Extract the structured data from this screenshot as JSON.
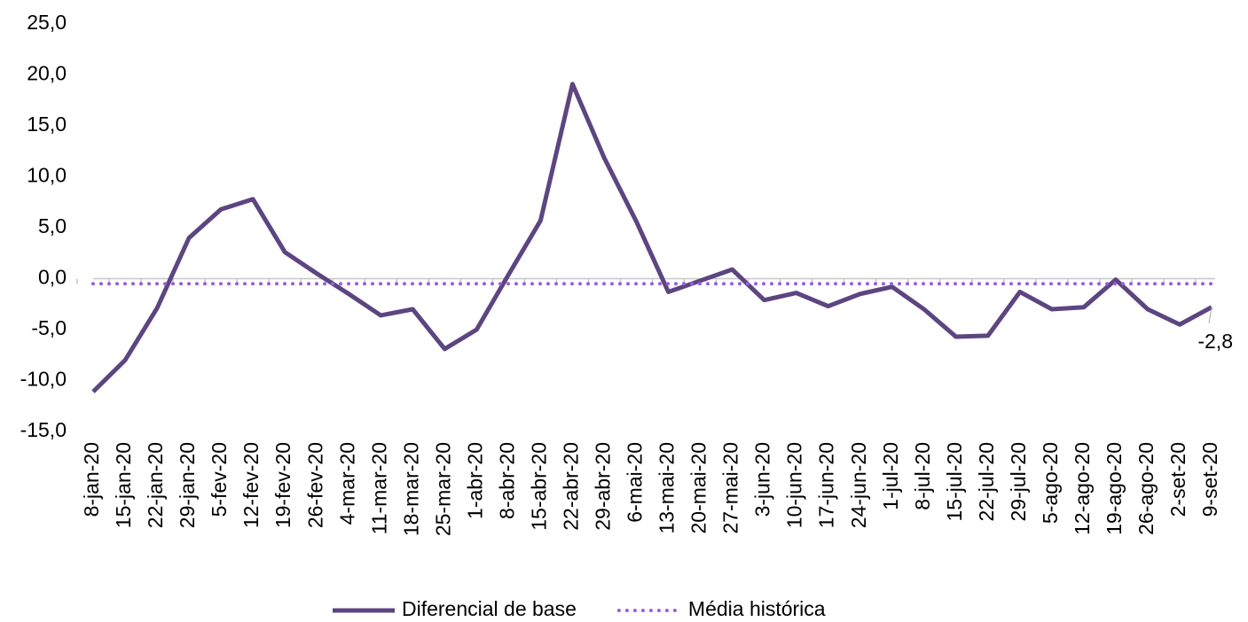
{
  "chart_data": {
    "type": "line",
    "categories": [
      "8-jan-20",
      "15-jan-20",
      "22-jan-20",
      "29-jan-20",
      "5-fev-20",
      "12-fev-20",
      "19-fev-20",
      "26-fev-20",
      "4-mar-20",
      "11-mar-20",
      "18-mar-20",
      "25-mar-20",
      "1-abr-20",
      "8-abr-20",
      "15-abr-20",
      "22-abr-20",
      "29-abr-20",
      "6-mai-20",
      "13-mai-20",
      "20-mai-20",
      "27-mai-20",
      "3-jun-20",
      "10-jun-20",
      "17-jun-20",
      "24-jun-20",
      "1-jul-20",
      "8-jul-20",
      "15-jul-20",
      "22-jul-20",
      "29-jul-20",
      "5-ago-20",
      "12-ago-20",
      "19-ago-20",
      "26-ago-20",
      "2-set-20",
      "9-set-20"
    ],
    "series": [
      {
        "name": "Diferencial de base",
        "color": "#5c4580",
        "style": "solid",
        "values": [
          -11.1,
          -8.0,
          -2.9,
          4.0,
          6.8,
          7.8,
          2.6,
          0.5,
          -1.5,
          -3.6,
          -3.0,
          -6.9,
          -5.0,
          0.4,
          5.7,
          19.1,
          11.8,
          5.6,
          -1.3,
          -0.2,
          0.9,
          -2.1,
          -1.4,
          -2.7,
          -1.5,
          -0.8,
          -3.0,
          -5.7,
          -5.6,
          -1.3,
          -3.0,
          -2.8,
          -0.1,
          -3.0,
          -4.5,
          -2.8
        ],
        "value_labels": [
          null,
          null,
          null,
          null,
          null,
          null,
          null,
          null,
          null,
          null,
          null,
          null,
          null,
          null,
          null,
          null,
          null,
          null,
          null,
          null,
          null,
          null,
          null,
          null,
          null,
          null,
          null,
          null,
          null,
          null,
          null,
          null,
          null,
          null,
          null,
          "-2,8"
        ]
      },
      {
        "name": "Média histórica",
        "color": "#9b5fd6",
        "style": "dotted",
        "values": [
          -0.5,
          -0.5,
          -0.5,
          -0.5,
          -0.5,
          -0.5,
          -0.5,
          -0.5,
          -0.5,
          -0.5,
          -0.5,
          -0.5,
          -0.5,
          -0.5,
          -0.5,
          -0.5,
          -0.5,
          -0.5,
          -0.5,
          -0.5,
          -0.5,
          -0.5,
          -0.5,
          -0.5,
          -0.5,
          -0.5,
          -0.5,
          -0.5,
          -0.5,
          -0.5,
          -0.5,
          -0.5,
          -0.5,
          -0.5,
          -0.5,
          -0.5
        ]
      }
    ],
    "ylim": [
      -15,
      25
    ],
    "yticks": [
      {
        "value": -15,
        "label": "-15,0"
      },
      {
        "value": -10,
        "label": "-10,0"
      },
      {
        "value": -5,
        "label": "-5,0"
      },
      {
        "value": 0,
        "label": "0,0"
      },
      {
        "value": 5,
        "label": "5,0"
      },
      {
        "value": 10,
        "label": "10,0"
      },
      {
        "value": 15,
        "label": "15,0"
      },
      {
        "value": 20,
        "label": "20,0"
      },
      {
        "value": 25,
        "label": "25,0"
      }
    ],
    "grid": false,
    "legend": "bottom"
  }
}
